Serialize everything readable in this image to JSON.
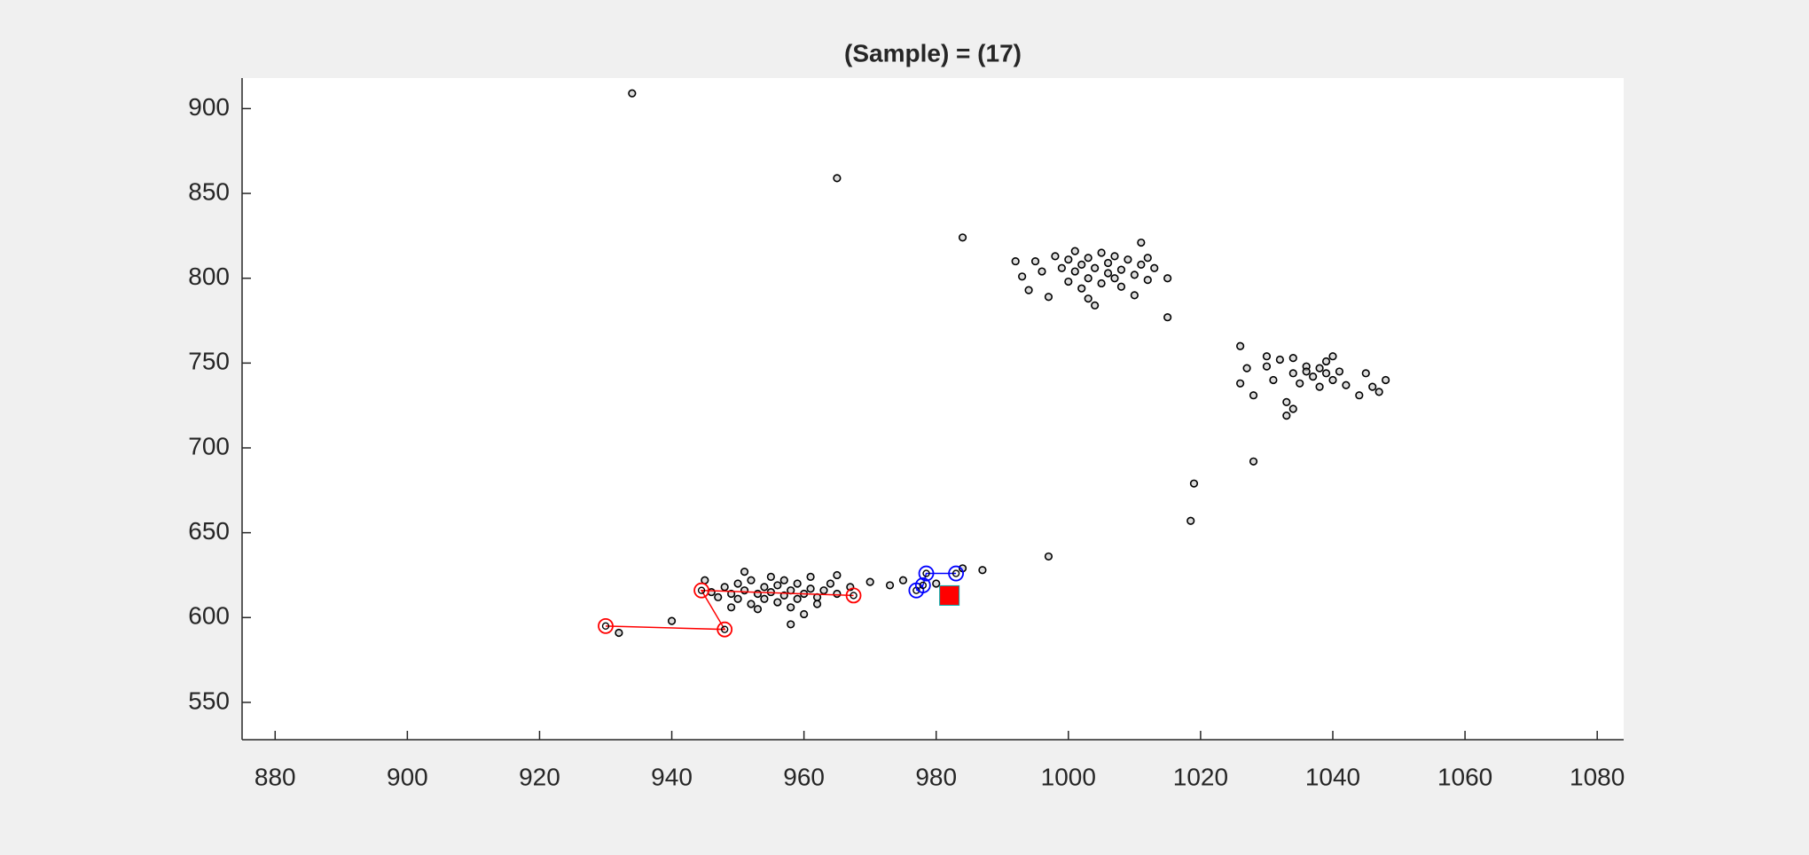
{
  "chart_data": {
    "type": "scatter",
    "title": "(Sample) = (17)",
    "xlim": [
      875,
      1084
    ],
    "ylim": [
      528,
      918
    ],
    "xticks": [
      880,
      900,
      920,
      940,
      960,
      980,
      1000,
      1020,
      1040,
      1060,
      1080
    ],
    "yticks": [
      550,
      600,
      650,
      700,
      750,
      800,
      850,
      900
    ],
    "series": [
      {
        "color": "#000000",
        "marker": "circle",
        "x": [
          934,
          965,
          984,
          997,
          1019,
          1018.5,
          1028,
          1015,
          940,
          932,
          946,
          947,
          948,
          949,
          950,
          950,
          951,
          952,
          952,
          953,
          954,
          954,
          955,
          955,
          956,
          956,
          957,
          957,
          958,
          958,
          959,
          959,
          960,
          961,
          961,
          962,
          963,
          964,
          965,
          965,
          949,
          953,
          958,
          960,
          962,
          967,
          970,
          973,
          975,
          980,
          984,
          987,
          951,
          945,
          992,
          993,
          994,
          995,
          997,
          998,
          999,
          1000,
          1000,
          1001,
          1001,
          1002,
          1002,
          1003,
          1003,
          1004,
          1004,
          1005,
          1005,
          1006,
          1006,
          1007,
          1008,
          1008,
          1009,
          1010,
          1010,
          1011,
          1011,
          1012,
          1013,
          1015,
          996,
          1003,
          1007,
          1012,
          1026,
          1026,
          1027,
          1028,
          1030,
          1030,
          1031,
          1032,
          1033,
          1033,
          1034,
          1034,
          1035,
          1036,
          1037,
          1038,
          1038,
          1039,
          1040,
          1040,
          1041,
          1042,
          1044,
          1045,
          1046,
          1047,
          1048,
          1034,
          1036,
          1039
        ],
        "y": [
          909,
          859,
          824,
          636,
          679,
          657,
          692,
          777,
          598,
          591,
          615,
          612,
          618,
          614,
          620,
          611,
          616,
          622,
          608,
          614,
          618,
          611,
          624,
          615,
          609,
          619,
          613,
          622,
          616,
          606,
          611,
          620,
          614,
          617,
          624,
          612,
          616,
          620,
          614,
          625,
          606,
          605,
          596,
          602,
          608,
          618,
          621,
          619,
          622,
          620,
          629,
          628,
          627,
          622,
          810,
          801,
          793,
          810,
          789,
          813,
          806,
          811,
          798,
          804,
          816,
          808,
          794,
          800,
          812,
          806,
          784,
          815,
          797,
          803,
          809,
          800,
          805,
          795,
          811,
          802,
          790,
          808,
          821,
          799,
          806,
          800,
          804,
          788,
          813,
          812,
          760,
          738,
          747,
          731,
          754,
          748,
          740,
          752,
          727,
          719,
          744,
          753,
          738,
          748,
          742,
          747,
          736,
          751,
          740,
          754,
          745,
          737,
          731,
          744,
          736,
          733,
          740,
          723,
          745,
          744
        ]
      },
      {
        "color": "#ff0000",
        "marker": "circled",
        "line": true,
        "x": [
          930,
          948,
          944.5,
          967.5
        ],
        "y": [
          595,
          593,
          616,
          613
        ]
      },
      {
        "color": "#0000ff",
        "marker": "circled",
        "line": true,
        "x": [
          977,
          978,
          978.5,
          983
        ],
        "y": [
          616,
          619,
          626,
          626
        ]
      },
      {
        "color": "#ff0000",
        "marker": "square",
        "x": [
          982
        ],
        "y": [
          613
        ]
      }
    ]
  }
}
